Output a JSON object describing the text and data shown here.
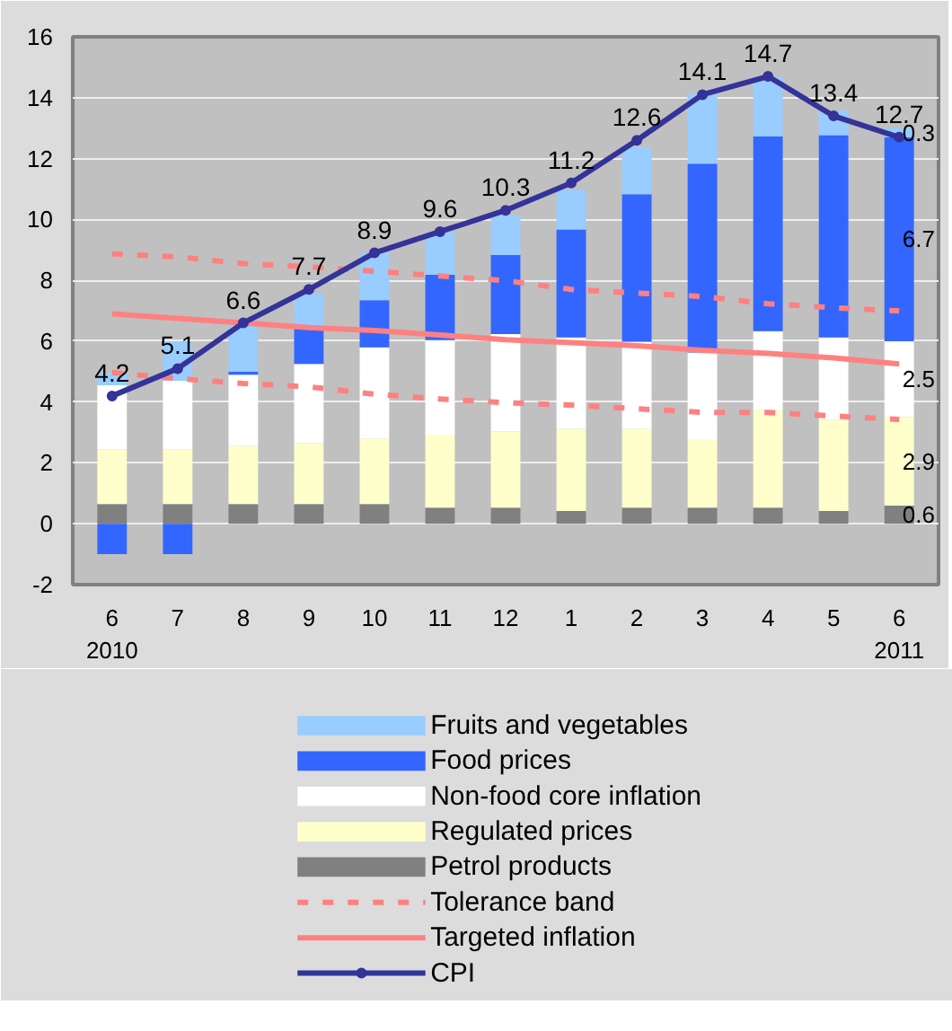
{
  "chart_data": {
    "type": "bar",
    "stacked": true,
    "categories": [
      "6\n2010",
      "7",
      "8",
      "9",
      "10",
      "11",
      "12",
      "1",
      "2",
      "3",
      "4",
      "5",
      "6\n2011"
    ],
    "ylim": [
      -2,
      16
    ],
    "yticks": [
      -2,
      0,
      2,
      4,
      6,
      8,
      10,
      12,
      14,
      16
    ],
    "grid": "y",
    "legend": "bottom",
    "series": [
      {
        "name": "Petrol products",
        "color": "#808080",
        "values": [
          0.65,
          0.65,
          0.65,
          0.65,
          0.65,
          0.53,
          0.53,
          0.42,
          0.53,
          0.53,
          0.53,
          0.42,
          0.6
        ],
        "value_labels": [
          null,
          null,
          null,
          null,
          null,
          null,
          null,
          null,
          null,
          null,
          null,
          null,
          "0.6"
        ]
      },
      {
        "name": "Regulated prices",
        "color": "#ffffcc",
        "values": [
          1.8,
          1.8,
          1.9,
          2.0,
          2.15,
          2.4,
          2.5,
          2.7,
          2.6,
          2.25,
          3.2,
          3.0,
          2.9
        ],
        "value_labels": [
          null,
          null,
          null,
          null,
          null,
          null,
          null,
          null,
          null,
          null,
          null,
          null,
          "2.9"
        ]
      },
      {
        "name": "Non-food core inflation",
        "color": "#ffffff",
        "values": [
          2.1,
          2.25,
          2.35,
          2.6,
          3.0,
          3.1,
          3.2,
          3.0,
          2.85,
          2.85,
          2.6,
          2.7,
          2.5
        ],
        "value_labels": [
          null,
          null,
          null,
          null,
          null,
          null,
          null,
          null,
          null,
          null,
          null,
          null,
          "2.5"
        ]
      },
      {
        "name": "Food prices",
        "color": "#3366ff",
        "values": [
          -1.0,
          -1.0,
          0.1,
          1.2,
          1.55,
          2.15,
          2.6,
          3.55,
          4.85,
          6.2,
          6.4,
          6.65,
          6.7
        ],
        "value_labels": [
          null,
          null,
          null,
          null,
          null,
          null,
          null,
          null,
          null,
          null,
          null,
          null,
          "6.7"
        ]
      },
      {
        "name": "Fruits and vegetables",
        "color": "#99ccff",
        "values": [
          0.4,
          1.3,
          1.5,
          1.1,
          1.55,
          1.4,
          1.3,
          1.3,
          1.55,
          2.3,
          1.95,
          0.8,
          0.3
        ],
        "value_labels": [
          null,
          null,
          null,
          null,
          null,
          null,
          null,
          null,
          null,
          null,
          null,
          null,
          "0.3"
        ]
      },
      {
        "name": "Tolerance band",
        "type": "line",
        "line_style": "dashed",
        "color": "#ff8080",
        "values": [
          8.87,
          8.77,
          8.55,
          8.44,
          8.3,
          8.14,
          7.99,
          7.7,
          7.58,
          7.47,
          7.23,
          7.1,
          6.99
        ]
      },
      {
        "type": "line",
        "line_style": "dashed",
        "color": "#ff8080",
        "values": [
          4.97,
          4.77,
          4.61,
          4.5,
          4.26,
          4.1,
          3.98,
          3.9,
          3.78,
          3.66,
          3.66,
          3.54,
          3.43
        ]
      },
      {
        "name": "Targeted inflation",
        "type": "line",
        "line_style": "solid",
        "color": "#ff8080",
        "values": [
          6.9,
          6.75,
          6.6,
          6.45,
          6.35,
          6.2,
          6.05,
          5.95,
          5.85,
          5.7,
          5.6,
          5.45,
          5.25
        ]
      },
      {
        "name": "CPI",
        "type": "line",
        "line_style": "solid",
        "marker": "circle",
        "color": "#333399",
        "values": [
          4.2,
          5.1,
          6.6,
          7.7,
          8.9,
          9.6,
          10.3,
          11.2,
          12.6,
          14.1,
          14.7,
          13.4,
          12.7
        ],
        "value_labels": [
          "4.2",
          "5.1",
          "6.6",
          "7.7",
          "8.9",
          "9.6",
          "10.3",
          "11.2",
          "12.6",
          "14.1",
          "14.7",
          "13.4",
          "12.7"
        ]
      }
    ]
  }
}
